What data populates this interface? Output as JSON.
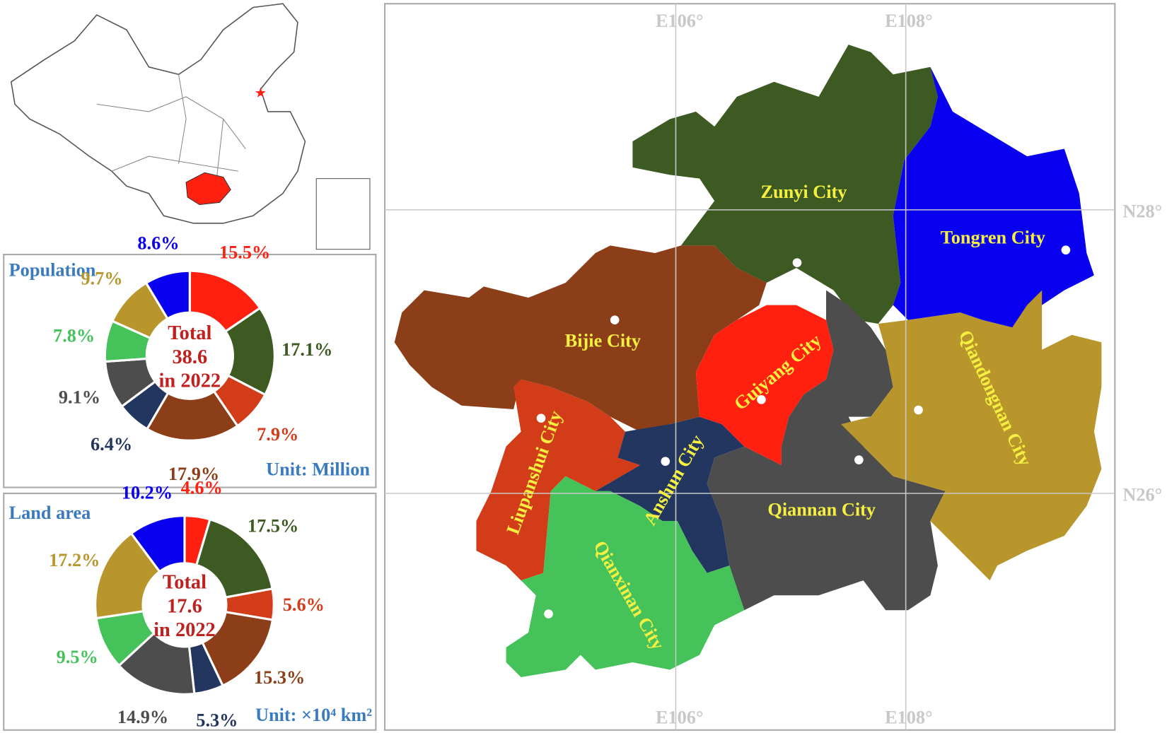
{
  "chart_data": [
    {
      "type": "donut",
      "title": "Population",
      "unit_label": "Unit: Million",
      "center_text": [
        "Total",
        "38.6",
        "in 2022"
      ],
      "values": [
        15.5,
        17.1,
        7.9,
        17.9,
        6.4,
        9.1,
        7.8,
        9.7,
        8.6
      ],
      "value_labels": [
        "15.5%",
        "17.1%",
        "7.9%",
        "17.9%",
        "6.4%",
        "9.1%",
        "7.8%",
        "9.7%",
        "8.6%"
      ],
      "colors": [
        "#ff2010",
        "#3d5a23",
        "#d23c18",
        "#8b3e18",
        "#23365f",
        "#4d4d4d",
        "#45c35a",
        "#b8962c",
        "#0a00f0"
      ]
    },
    {
      "type": "donut",
      "title": "Land area",
      "unit_label": "Unit: ×10⁴ km²",
      "center_text": [
        "Total",
        "17.6",
        "in 2022"
      ],
      "values": [
        4.6,
        17.5,
        5.6,
        15.3,
        5.3,
        14.9,
        9.5,
        17.2,
        10.2
      ],
      "value_labels": [
        "4.6%",
        "17.5%",
        "5.6%",
        "15.3%",
        "5.3%",
        "14.9%",
        "9.5%",
        "17.2%",
        "10.2%"
      ],
      "colors": [
        "#ff2010",
        "#3d5a23",
        "#d23c18",
        "#8b3e18",
        "#23365f",
        "#4d4d4d",
        "#45c35a",
        "#b8962c",
        "#0a00f0"
      ]
    }
  ],
  "map": {
    "cities": [
      "Zunyi City",
      "Tongren City",
      "Bijie City",
      "Guiyang City",
      "Liupanshui City",
      "Anshun City",
      "Qiannan City",
      "Qiandongnan City",
      "Qianxinan City"
    ],
    "longitudes": [
      "E106°",
      "E108°"
    ],
    "latitudes": [
      "N28°",
      "N26°"
    ]
  }
}
